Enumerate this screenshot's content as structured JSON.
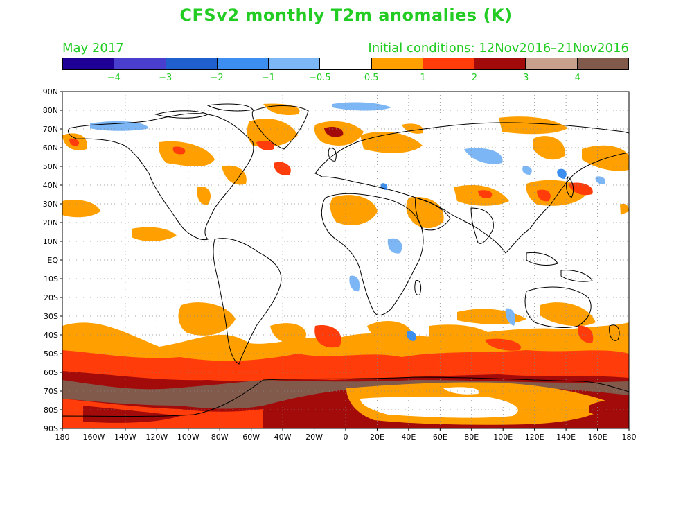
{
  "title": "CFSv2 monthly T2m anomalies (K)",
  "valid_month": "May 2017",
  "initial_conditions": "Initial conditions: 12Nov2016–21Nov2016",
  "colorbar": {
    "colors": [
      "#1f0096",
      "#4a3ecf",
      "#1f5fce",
      "#3c8ff0",
      "#7db6f5",
      "#ffffff",
      "#ffa000",
      "#ff3c0a",
      "#a30a0a",
      "#c8a08c",
      "#825a4b"
    ],
    "labels": [
      "−4",
      "−3",
      "−2",
      "−1",
      "−0.5",
      "0.5",
      "1",
      "2",
      "3",
      "4"
    ]
  },
  "axes": {
    "lat_labels": [
      "90N",
      "80N",
      "70N",
      "60N",
      "50N",
      "40N",
      "30N",
      "20N",
      "10N",
      "EQ",
      "10S",
      "20S",
      "30S",
      "40S",
      "50S",
      "60S",
      "70S",
      "80S",
      "90S"
    ],
    "lon_labels": [
      "180",
      "160W",
      "140W",
      "120W",
      "100W",
      "80W",
      "60W",
      "40W",
      "20W",
      "0",
      "20E",
      "40E",
      "60E",
      "80E",
      "100E",
      "120E",
      "140E",
      "160E",
      "180"
    ]
  },
  "map_data": {
    "projection": "equirectangular",
    "lon_range": [
      -180,
      180
    ],
    "lat_range": [
      -90,
      90
    ],
    "gridlines": "dotted"
  }
}
